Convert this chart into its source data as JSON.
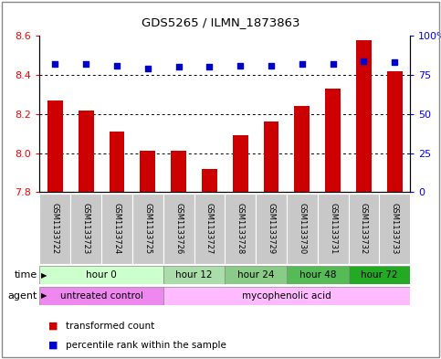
{
  "title": "GDS5265 / ILMN_1873863",
  "samples": [
    "GSM1133722",
    "GSM1133723",
    "GSM1133724",
    "GSM1133725",
    "GSM1133726",
    "GSM1133727",
    "GSM1133728",
    "GSM1133729",
    "GSM1133730",
    "GSM1133731",
    "GSM1133732",
    "GSM1133733"
  ],
  "transformed_count": [
    8.27,
    8.22,
    8.11,
    8.01,
    8.01,
    7.92,
    8.09,
    8.16,
    8.24,
    8.33,
    8.58,
    8.42
  ],
  "percentile_rank": [
    82,
    82,
    81,
    79,
    80,
    80,
    81,
    81,
    82,
    82,
    84,
    83
  ],
  "ylim": [
    7.8,
    8.6
  ],
  "yticks": [
    7.8,
    8.0,
    8.2,
    8.4,
    8.6
  ],
  "right_yticks": [
    0,
    25,
    50,
    75,
    100
  ],
  "right_ylim": [
    0,
    100
  ],
  "bar_color": "#cc0000",
  "dot_color": "#0000cc",
  "time_groups": [
    {
      "label": "hour 0",
      "start": 0,
      "end": 4,
      "color": "#ccffcc"
    },
    {
      "label": "hour 12",
      "start": 4,
      "end": 6,
      "color": "#aaddaa"
    },
    {
      "label": "hour 24",
      "start": 6,
      "end": 8,
      "color": "#88cc88"
    },
    {
      "label": "hour 48",
      "start": 8,
      "end": 10,
      "color": "#55bb55"
    },
    {
      "label": "hour 72",
      "start": 10,
      "end": 12,
      "color": "#22aa22"
    }
  ],
  "agent_groups": [
    {
      "label": "untreated control",
      "start": 0,
      "end": 4,
      "color": "#ee88ee"
    },
    {
      "label": "mycophenolic acid",
      "start": 4,
      "end": 12,
      "color": "#ffbbff"
    }
  ],
  "legend_items": [
    {
      "label": "transformed count",
      "color": "#cc0000"
    },
    {
      "label": "percentile rank within the sample",
      "color": "#0000cc"
    }
  ],
  "grid_color": "black",
  "bar_width": 0.5,
  "sample_bg_color": "#c8c8c8",
  "time_label_color": "black",
  "agent_label_color": "black"
}
